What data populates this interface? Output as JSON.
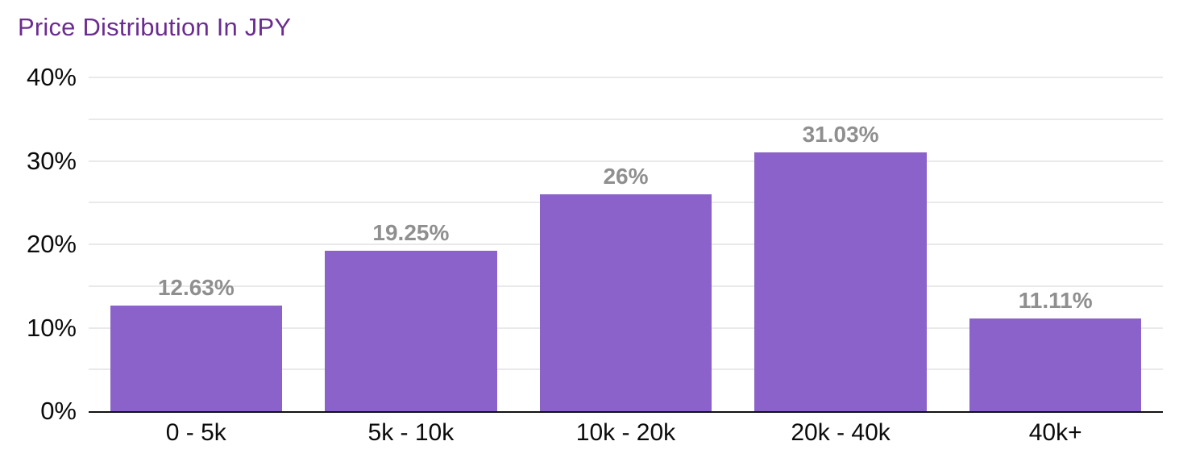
{
  "title": "Price Distribution In JPY",
  "colors": {
    "bar": "#8A62C9",
    "title": "#6B2C91",
    "value_label": "#8F8F8F",
    "gridline": "#E9E9E9",
    "axis_line": "#111111",
    "tick_label": "#0B0B0B",
    "background": "#FFFFFF"
  },
  "chart_data": {
    "type": "bar",
    "title": "Price Distribution In JPY",
    "categories": [
      "0 - 5k",
      "5k - 10k",
      "10k - 20k",
      "20k - 40k",
      "40k+"
    ],
    "values": [
      12.63,
      19.25,
      26,
      31.03,
      11.11
    ],
    "value_labels": [
      "12.63%",
      "19.25%",
      "26%",
      "31.03%",
      "11.11%"
    ],
    "xlabel": "",
    "ylabel": "",
    "ylim": [
      0,
      40
    ],
    "yticks": [
      0,
      10,
      20,
      30,
      40
    ],
    "ytick_labels": [
      "0%",
      "10%",
      "20%",
      "30%",
      "40%"
    ],
    "grid_step": 5,
    "grid": true,
    "legend_position": "none"
  }
}
